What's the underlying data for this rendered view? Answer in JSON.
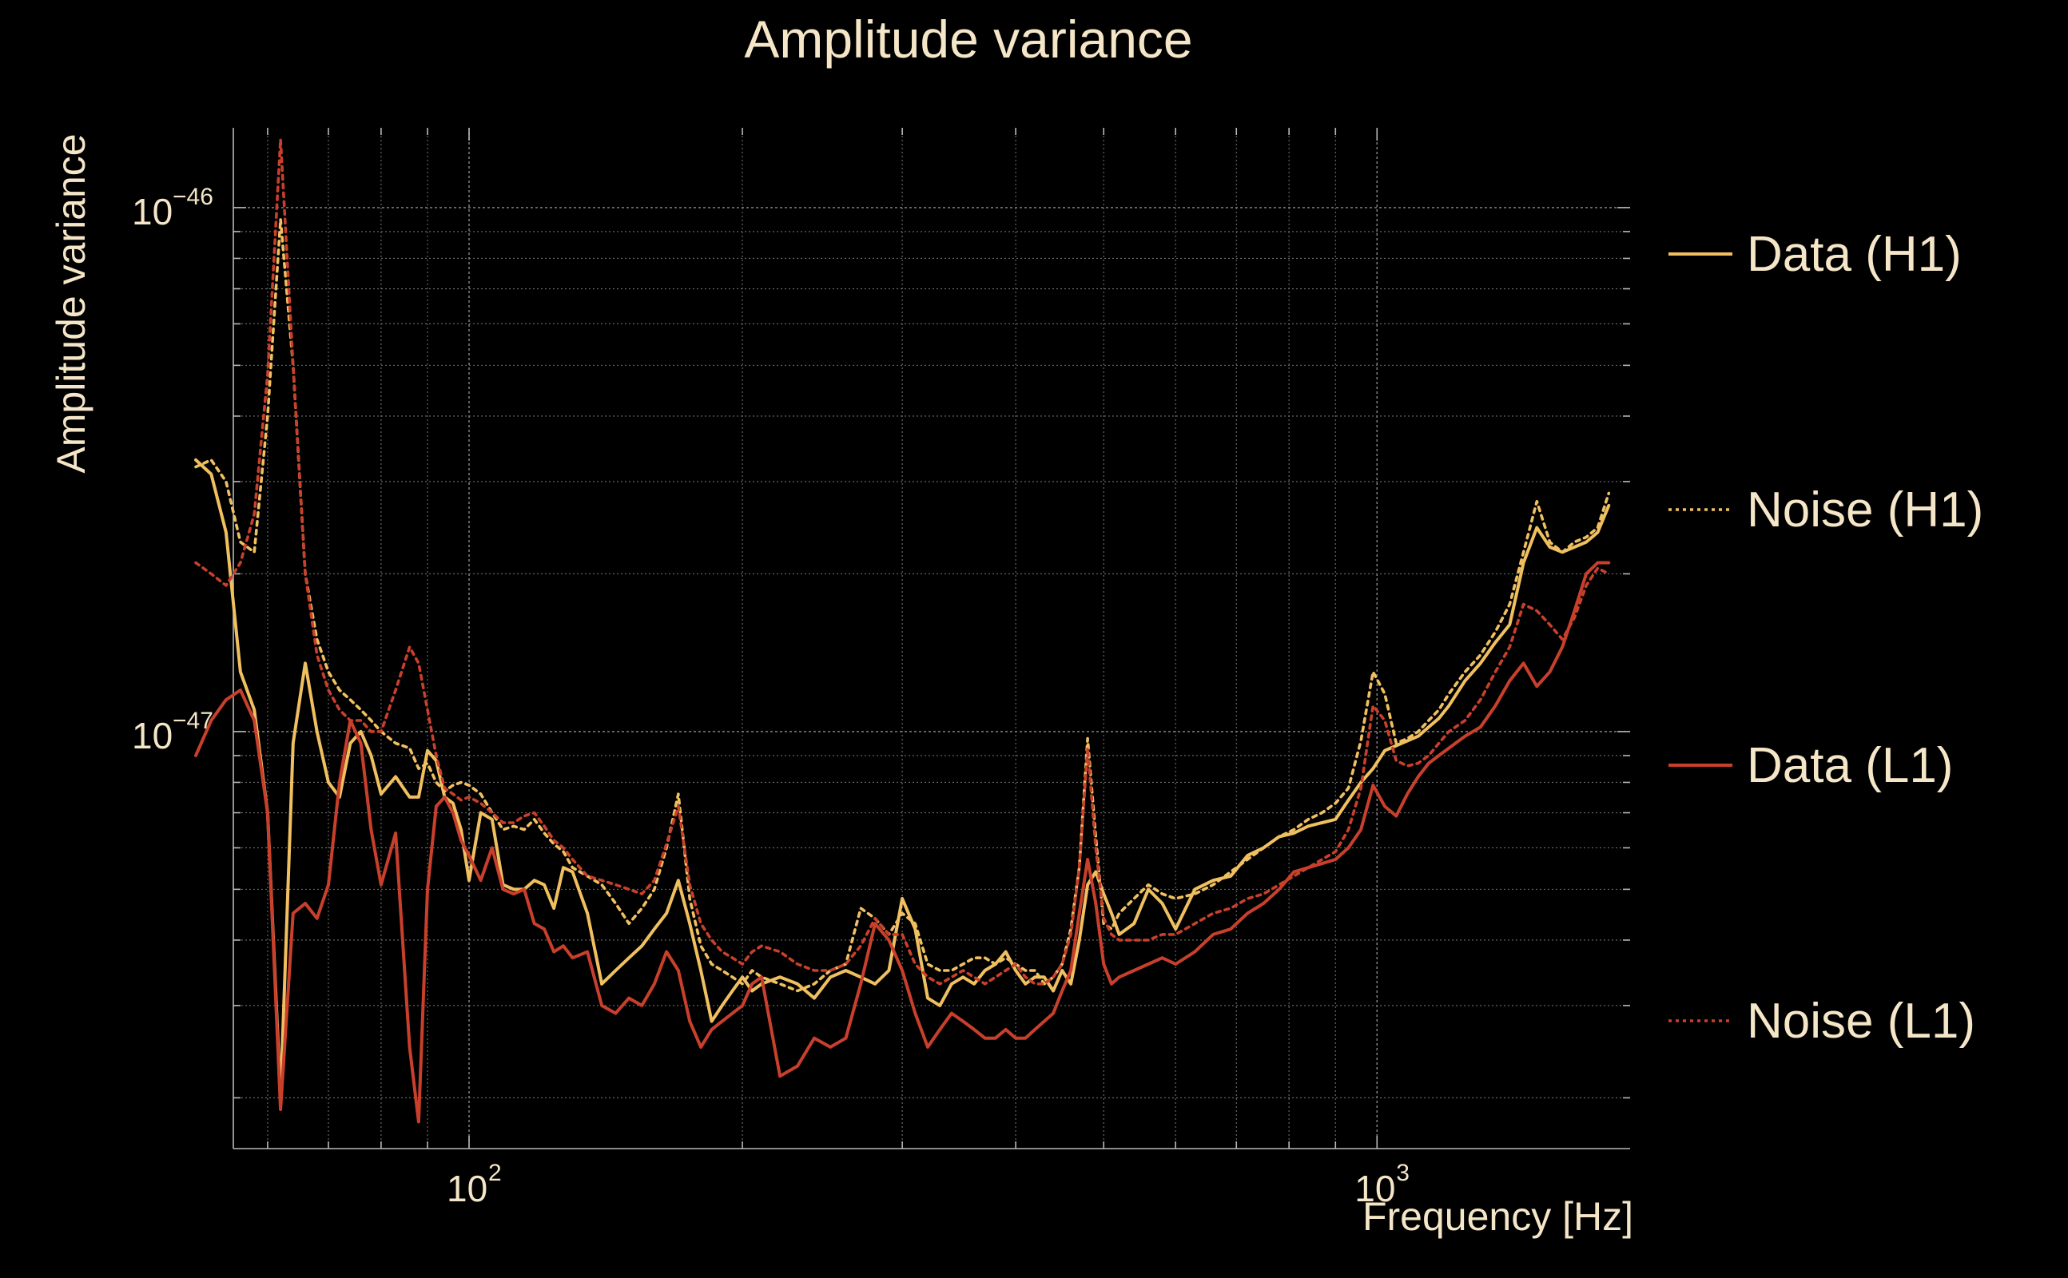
{
  "chart_data": {
    "type": "line",
    "title": "Amplitude variance",
    "xlabel": "Frequency [Hz]",
    "ylabel": "Amplitude variance",
    "xscale": "log",
    "yscale": "log",
    "xlim": [
      55,
      1900
    ],
    "ylim": [
      1.6e-48,
      1.42e-46
    ],
    "grid": true,
    "legend_position": "right",
    "x_ticks": [
      {
        "value": 100,
        "base": "10",
        "exp": "2"
      },
      {
        "value": 1000,
        "base": "10",
        "exp": "3"
      }
    ],
    "y_ticks": [
      {
        "value": 1e-47,
        "base": "10",
        "exp": "−47"
      },
      {
        "value": 1e-46,
        "base": "10",
        "exp": "−46"
      }
    ],
    "x": [
      50,
      52,
      54,
      56,
      58,
      60,
      62,
      64,
      66,
      68,
      70,
      72,
      74,
      76,
      78,
      80,
      83,
      86,
      88,
      90,
      92,
      94,
      96,
      98,
      100,
      103,
      106,
      109,
      112,
      115,
      118,
      121,
      124,
      127,
      130,
      135,
      140,
      145,
      150,
      155,
      160,
      165,
      170,
      175,
      180,
      185,
      190,
      195,
      200,
      205,
      210,
      220,
      230,
      240,
      250,
      260,
      270,
      280,
      290,
      300,
      310,
      320,
      330,
      340,
      350,
      360,
      370,
      380,
      390,
      400,
      410,
      420,
      430,
      440,
      450,
      460,
      470,
      480,
      490,
      500,
      510,
      520,
      540,
      560,
      580,
      600,
      630,
      660,
      690,
      720,
      750,
      780,
      810,
      840,
      870,
      900,
      930,
      960,
      990,
      1020,
      1050,
      1080,
      1110,
      1140,
      1170,
      1200,
      1250,
      1300,
      1350,
      1400,
      1450,
      1500,
      1550,
      1600,
      1650,
      1700,
      1750,
      1800
    ],
    "series": [
      {
        "name": "Data (H1)",
        "color": "#f0c060",
        "style": "solid",
        "values": [
          3.3e-47,
          3.1e-47,
          2.4e-47,
          1.3e-47,
          1.1e-47,
          7e-48,
          2e-48,
          9.5e-48,
          1.35e-47,
          1e-47,
          8e-48,
          7.5e-48,
          9.5e-48,
          1e-47,
          9e-48,
          7.6e-48,
          8.2e-48,
          7.5e-48,
          7.5e-48,
          9.2e-48,
          8.8e-48,
          7.5e-48,
          7.3e-48,
          6.5e-48,
          5.2e-48,
          7e-48,
          6.8e-48,
          5.1e-48,
          5e-48,
          5e-48,
          5.2e-48,
          5.1e-48,
          4.6e-48,
          5.5e-48,
          5.4e-48,
          4.5e-48,
          3.3e-48,
          3.5e-48,
          3.7e-48,
          3.9e-48,
          4.2e-48,
          4.5e-48,
          5.2e-48,
          4.3e-48,
          3.5e-48,
          2.8e-48,
          3e-48,
          3.2e-48,
          3.4e-48,
          3.2e-48,
          3.3e-48,
          3.4e-48,
          3.3e-48,
          3.1e-48,
          3.4e-48,
          3.5e-48,
          3.4e-48,
          3.3e-48,
          3.5e-48,
          4.8e-48,
          4.2e-48,
          3.1e-48,
          3e-48,
          3.3e-48,
          3.4e-48,
          3.3e-48,
          3.5e-48,
          3.6e-48,
          3.8e-48,
          3.5e-48,
          3.3e-48,
          3.4e-48,
          3.4e-48,
          3.2e-48,
          3.5e-48,
          3.3e-48,
          4e-48,
          5.1e-48,
          5.4e-48,
          4.9e-48,
          4.5e-48,
          4.1e-48,
          4.3e-48,
          5e-48,
          4.7e-48,
          4.2e-48,
          5e-48,
          5.2e-48,
          5.3e-48,
          5.8e-48,
          6e-48,
          6.3e-48,
          6.4e-48,
          6.6e-48,
          6.7e-48,
          6.8e-48,
          7.4e-48,
          8e-48,
          8.5e-48,
          9.2e-48,
          9.4e-48,
          9.6e-48,
          9.8e-48,
          1.02e-47,
          1.06e-47,
          1.12e-47,
          1.25e-47,
          1.35e-47,
          1.48e-47,
          1.6e-47,
          2.1e-47,
          2.45e-47,
          2.25e-47,
          2.2e-47,
          2.25e-47,
          2.3e-47,
          2.4e-47,
          2.7e-47
        ]
      },
      {
        "name": "Noise (H1)",
        "color": "#f0c060",
        "style": "dotted",
        "values": [
          3.2e-47,
          3.3e-47,
          3e-47,
          2.3e-47,
          2.2e-47,
          4e-47,
          9.5e-47,
          5e-47,
          2e-47,
          1.5e-47,
          1.3e-47,
          1.2e-47,
          1.15e-47,
          1.1e-47,
          1.05e-47,
          1e-47,
          9.5e-48,
          9.3e-48,
          8.5e-48,
          8.7e-48,
          8e-48,
          7.7e-48,
          7.9e-48,
          8e-48,
          7.9e-48,
          7.6e-48,
          7e-48,
          6.5e-48,
          6.6e-48,
          6.5e-48,
          6.8e-48,
          6.4e-48,
          6.1e-48,
          5.9e-48,
          5.5e-48,
          5.3e-48,
          5.1e-48,
          4.7e-48,
          4.3e-48,
          4.6e-48,
          5e-48,
          6e-48,
          7.6e-48,
          4.8e-48,
          3.9e-48,
          3.6e-48,
          3.5e-48,
          3.4e-48,
          3.3e-48,
          3.5e-48,
          3.4e-48,
          3.3e-48,
          3.2e-48,
          3.3e-48,
          3.5e-48,
          3.6e-48,
          4.6e-48,
          4.4e-48,
          4.1e-48,
          4.5e-48,
          4.3e-48,
          3.6e-48,
          3.5e-48,
          3.5e-48,
          3.6e-48,
          3.7e-48,
          3.7e-48,
          3.6e-48,
          3.7e-48,
          3.6e-48,
          3.5e-48,
          3.5e-48,
          3.3e-48,
          3.4e-48,
          3.6e-48,
          4.2e-48,
          5.5e-48,
          9.7e-48,
          6.3e-48,
          4.3e-48,
          4.2e-48,
          4.5e-48,
          4.8e-48,
          5.1e-48,
          4.9e-48,
          4.8e-48,
          4.9e-48,
          5.1e-48,
          5.4e-48,
          5.7e-48,
          6e-48,
          6.3e-48,
          6.5e-48,
          6.8e-48,
          7e-48,
          7.3e-48,
          7.8e-48,
          9.6e-48,
          1.3e-47,
          1.18e-47,
          9.5e-48,
          9.7e-48,
          1e-47,
          1.05e-47,
          1.1e-47,
          1.18e-47,
          1.3e-47,
          1.4e-47,
          1.55e-47,
          1.75e-47,
          2.2e-47,
          2.75e-47,
          2.3e-47,
          2.2e-47,
          2.3e-47,
          2.35e-47,
          2.45e-47,
          2.85e-47
        ]
      },
      {
        "name": "Data (L1)",
        "color": "#c8402c",
        "style": "solid",
        "values": [
          9e-48,
          1.05e-47,
          1.15e-47,
          1.2e-47,
          1.05e-47,
          7e-48,
          1.9e-48,
          4.5e-48,
          4.7e-48,
          4.4e-48,
          5.1e-48,
          8e-48,
          1.05e-47,
          9.5e-48,
          6.5e-48,
          5.1e-48,
          6.4e-48,
          2.5e-48,
          1.8e-48,
          5e-48,
          7.2e-48,
          7.5e-48,
          7e-48,
          6.2e-48,
          5.8e-48,
          5.2e-48,
          6e-48,
          5e-48,
          4.9e-48,
          5e-48,
          4.3e-48,
          4.2e-48,
          3.8e-48,
          3.9e-48,
          3.7e-48,
          3.8e-48,
          3e-48,
          2.9e-48,
          3.1e-48,
          3e-48,
          3.3e-48,
          3.8e-48,
          3.5e-48,
          2.8e-48,
          2.5e-48,
          2.7e-48,
          2.8e-48,
          2.9e-48,
          3e-48,
          3.3e-48,
          3.4e-48,
          2.2e-48,
          2.3e-48,
          2.6e-48,
          2.5e-48,
          2.6e-48,
          3.3e-48,
          4.3e-48,
          4e-48,
          3.5e-48,
          2.9e-48,
          2.5e-48,
          2.7e-48,
          2.9e-48,
          2.8e-48,
          2.7e-48,
          2.6e-48,
          2.6e-48,
          2.7e-48,
          2.6e-48,
          2.6e-48,
          2.7e-48,
          2.8e-48,
          2.9e-48,
          3.2e-48,
          3.5e-48,
          4.5e-48,
          5.7e-48,
          4.7e-48,
          3.6e-48,
          3.3e-48,
          3.4e-48,
          3.5e-48,
          3.6e-48,
          3.7e-48,
          3.6e-48,
          3.8e-48,
          4.1e-48,
          4.2e-48,
          4.5e-48,
          4.7e-48,
          5e-48,
          5.4e-48,
          5.5e-48,
          5.6e-48,
          5.7e-48,
          6e-48,
          6.5e-48,
          7.9e-48,
          7.2e-48,
          6.9e-48,
          7.6e-48,
          8.2e-48,
          8.7e-48,
          9e-48,
          9.3e-48,
          9.8e-48,
          1.02e-47,
          1.12e-47,
          1.25e-47,
          1.35e-47,
          1.22e-47,
          1.3e-47,
          1.45e-47,
          1.7e-47,
          2e-47,
          2.1e-47,
          2.1e-47
        ]
      },
      {
        "name": "Noise (L1)",
        "color": "#c8402c",
        "style": "dotted",
        "values": [
          2.1e-47,
          2e-47,
          1.9e-47,
          2.1e-47,
          2.6e-47,
          4.8e-47,
          1.35e-46,
          5e-47,
          2e-47,
          1.4e-47,
          1.2e-47,
          1.1e-47,
          1.05e-47,
          1.05e-47,
          1e-47,
          1e-47,
          1.2e-47,
          1.45e-47,
          1.35e-47,
          1.1e-47,
          9e-48,
          7.8e-48,
          7.6e-48,
          7.4e-48,
          7.5e-48,
          7.3e-48,
          7e-48,
          6.7e-48,
          6.7e-48,
          6.9e-48,
          7e-48,
          6.6e-48,
          6.2e-48,
          6e-48,
          5.7e-48,
          5.3e-48,
          5.2e-48,
          5.1e-48,
          5e-48,
          4.9e-48,
          5.2e-48,
          6.1e-48,
          7.2e-48,
          5.1e-48,
          4.3e-48,
          4e-48,
          3.8e-48,
          3.7e-48,
          3.6e-48,
          3.8e-48,
          3.9e-48,
          3.8e-48,
          3.6e-48,
          3.5e-48,
          3.5e-48,
          3.6e-48,
          3.9e-48,
          4.4e-48,
          4.1e-48,
          4.1e-48,
          3.6e-48,
          3.4e-48,
          3.3e-48,
          3.4e-48,
          3.5e-48,
          3.4e-48,
          3.3e-48,
          3.4e-48,
          3.5e-48,
          3.6e-48,
          3.4e-48,
          3.3e-48,
          3.3e-48,
          3.4e-48,
          3.6e-48,
          4.1e-48,
          5.5e-48,
          9.3e-48,
          6e-48,
          4.4e-48,
          4.1e-48,
          4e-48,
          4e-48,
          4e-48,
          4.1e-48,
          4.1e-48,
          4.3e-48,
          4.5e-48,
          4.6e-48,
          4.8e-48,
          4.9e-48,
          5.1e-48,
          5.3e-48,
          5.5e-48,
          5.7e-48,
          5.9e-48,
          6.5e-48,
          7.8e-48,
          1.12e-47,
          1.05e-47,
          8.8e-48,
          8.6e-48,
          8.7e-48,
          9e-48,
          9.5e-48,
          1e-47,
          1.05e-47,
          1.15e-47,
          1.3e-47,
          1.45e-47,
          1.75e-47,
          1.7e-47,
          1.6e-47,
          1.5e-47,
          1.65e-47,
          1.9e-47,
          2.05e-47,
          2e-47
        ]
      }
    ]
  }
}
